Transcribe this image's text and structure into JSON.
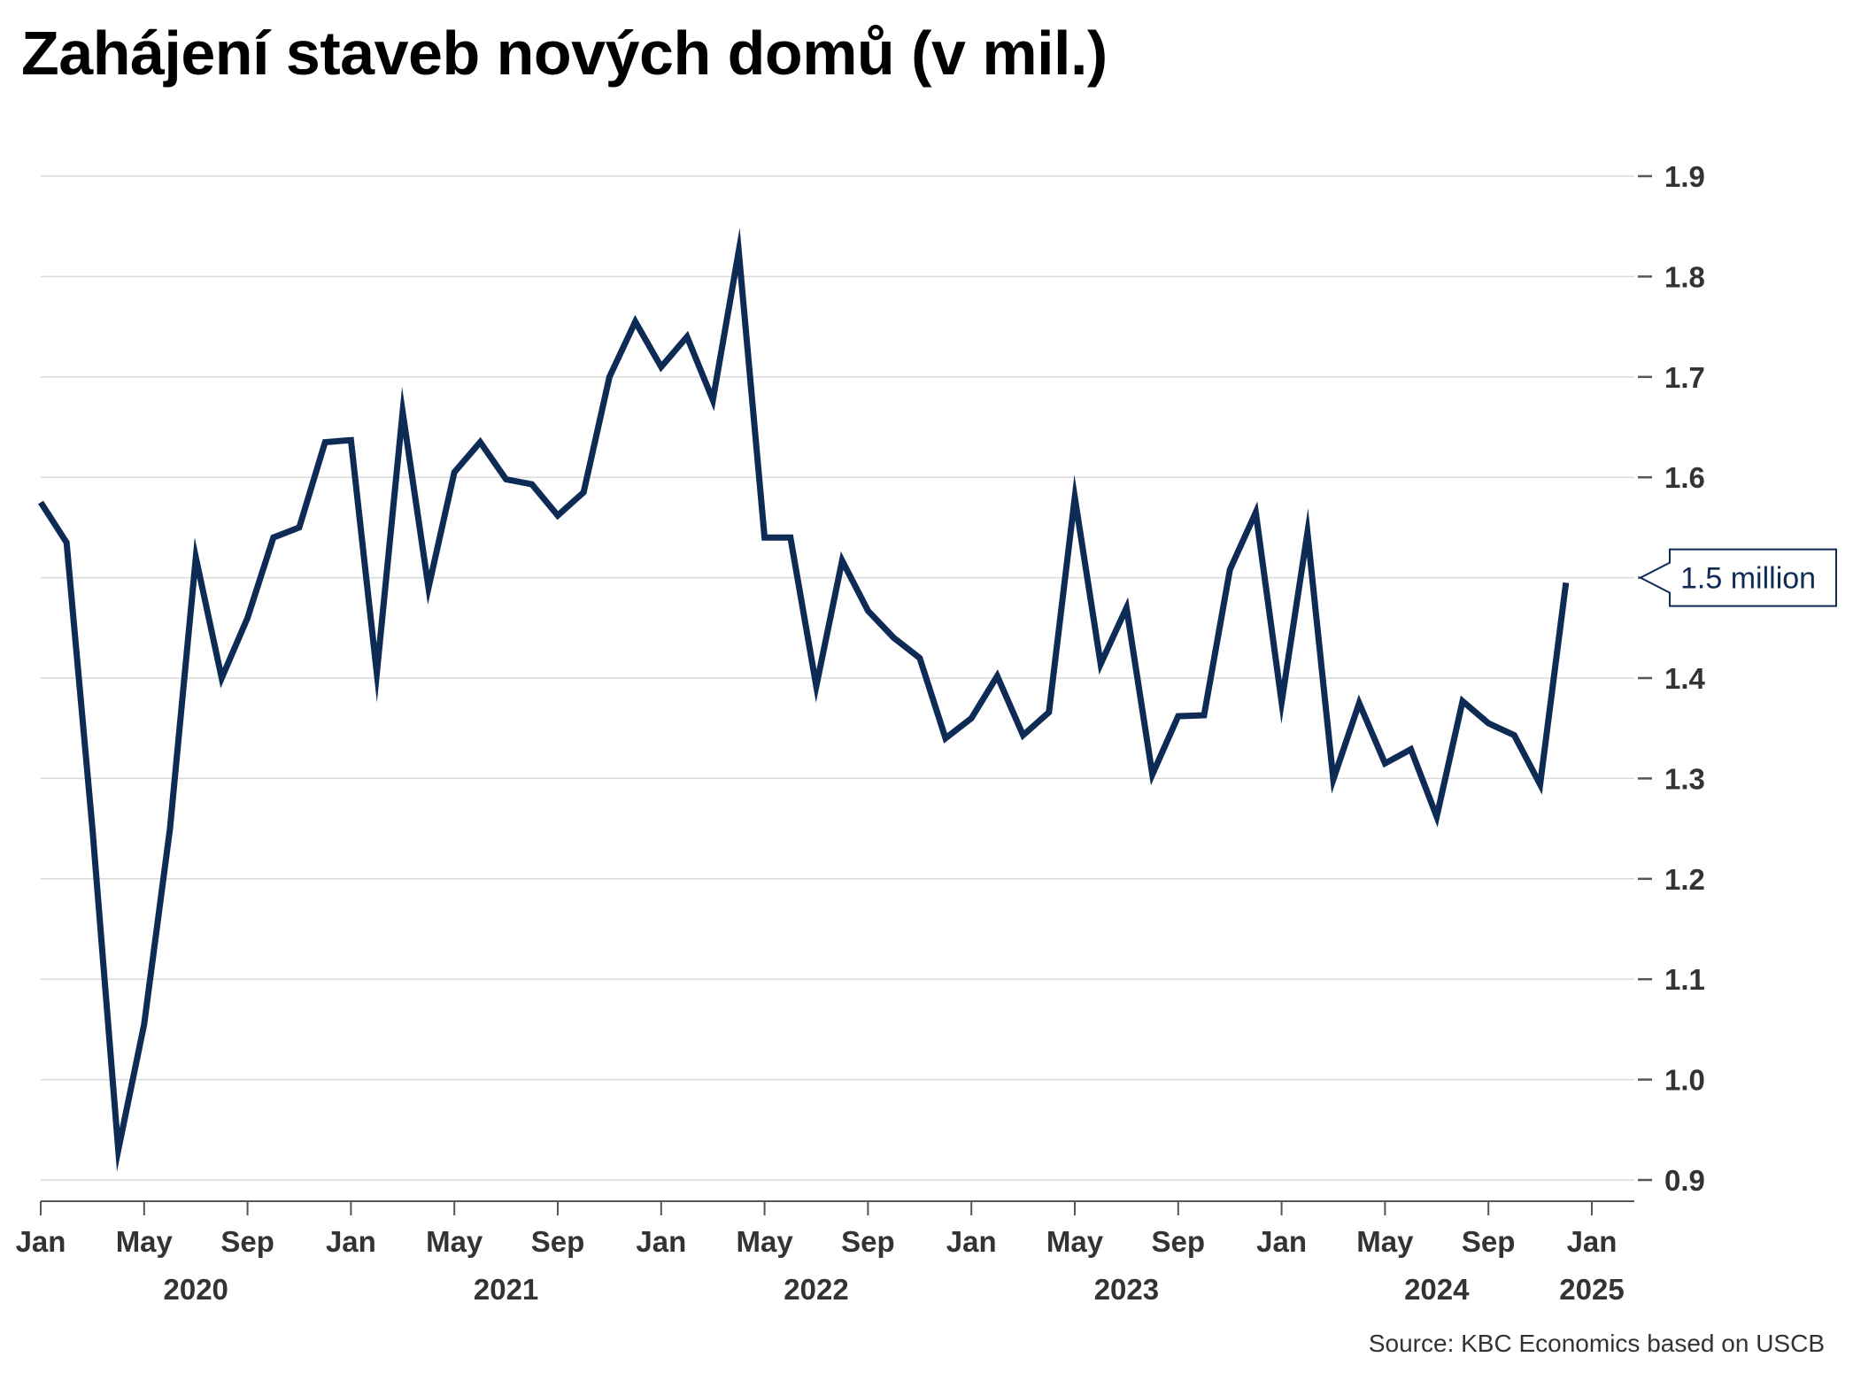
{
  "title": "Zahájení staveb nových domů (v mil.)",
  "source": "Source: KBC Economics based on USCB",
  "colors": {
    "line": "#0e2b55",
    "grid": "#d9d9d9",
    "axis": "#555555",
    "text": "#333333"
  },
  "chart_data": {
    "type": "line",
    "title": "Zahájení staveb nových domů (v mil.)",
    "xlabel": "",
    "ylabel": "",
    "y_axis_side": "right",
    "ylim": [
      0.9,
      1.9
    ],
    "yticks": [
      "0.9",
      "1.0",
      "1.1",
      "1.2",
      "1.3",
      "1.4",
      "1.5",
      "1.6",
      "1.7",
      "1.8",
      "1.9"
    ],
    "xlim": [
      "2020-01",
      "2025-01"
    ],
    "x_month_ticks": [
      {
        "month": "2020-01",
        "label": "Jan"
      },
      {
        "month": "2020-05",
        "label": "May"
      },
      {
        "month": "2020-09",
        "label": "Sep"
      },
      {
        "month": "2021-01",
        "label": "Jan"
      },
      {
        "month": "2021-05",
        "label": "May"
      },
      {
        "month": "2021-09",
        "label": "Sep"
      },
      {
        "month": "2022-01",
        "label": "Jan"
      },
      {
        "month": "2022-05",
        "label": "May"
      },
      {
        "month": "2022-09",
        "label": "Sep"
      },
      {
        "month": "2023-01",
        "label": "Jan"
      },
      {
        "month": "2023-05",
        "label": "May"
      },
      {
        "month": "2023-09",
        "label": "Sep"
      },
      {
        "month": "2024-01",
        "label": "Jan"
      },
      {
        "month": "2024-05",
        "label": "May"
      },
      {
        "month": "2024-09",
        "label": "Sep"
      },
      {
        "month": "2025-01",
        "label": "Jan"
      }
    ],
    "x_year_labels": [
      {
        "month": "2020-07",
        "label": "2020"
      },
      {
        "month": "2021-07",
        "label": "2021"
      },
      {
        "month": "2022-07",
        "label": "2022"
      },
      {
        "month": "2023-07",
        "label": "2023"
      },
      {
        "month": "2024-07",
        "label": "2024"
      },
      {
        "month": "2025-01",
        "label": "2025"
      }
    ],
    "grid": true,
    "series": [
      {
        "x": [
          "2020-01",
          "2020-02",
          "2020-03",
          "2020-04",
          "2020-05",
          "2020-06",
          "2020-07",
          "2020-08",
          "2020-09",
          "2020-10",
          "2020-11",
          "2020-12",
          "2021-01",
          "2021-02",
          "2021-03",
          "2021-04",
          "2021-05",
          "2021-06",
          "2021-07",
          "2021-08",
          "2021-09",
          "2021-10",
          "2021-11",
          "2021-12",
          "2022-01",
          "2022-02",
          "2022-03",
          "2022-04",
          "2022-05",
          "2022-06",
          "2022-07",
          "2022-08",
          "2022-09",
          "2022-10",
          "2022-11",
          "2022-12",
          "2023-01",
          "2023-02",
          "2023-03",
          "2023-04",
          "2023-05",
          "2023-06",
          "2023-07",
          "2023-08",
          "2023-09",
          "2023-10",
          "2023-11",
          "2023-12",
          "2024-01",
          "2024-02",
          "2024-03",
          "2024-04",
          "2024-05",
          "2024-06",
          "2024-07",
          "2024-08",
          "2024-09",
          "2024-10",
          "2024-11",
          "2024-12"
        ],
        "values": [
          1.575,
          1.535,
          1.25,
          0.93,
          1.055,
          1.25,
          1.52,
          1.4,
          1.46,
          1.54,
          1.55,
          1.635,
          1.637,
          1.405,
          1.665,
          1.49,
          1.605,
          1.635,
          1.598,
          1.593,
          1.562,
          1.585,
          1.7,
          1.755,
          1.71,
          1.74,
          1.677,
          1.825,
          1.54,
          1.54,
          1.392,
          1.517,
          1.467,
          1.44,
          1.42,
          1.34,
          1.36,
          1.402,
          1.343,
          1.366,
          1.58,
          1.414,
          1.47,
          1.304,
          1.362,
          1.363,
          1.508,
          1.565,
          1.376,
          1.545,
          1.299,
          1.375,
          1.315,
          1.329,
          1.262,
          1.377,
          1.355,
          1.343,
          1.294,
          1.495
        ]
      }
    ],
    "annotations": [
      {
        "text": "1.5 million",
        "x": "2024-12",
        "y": 1.5
      }
    ]
  }
}
